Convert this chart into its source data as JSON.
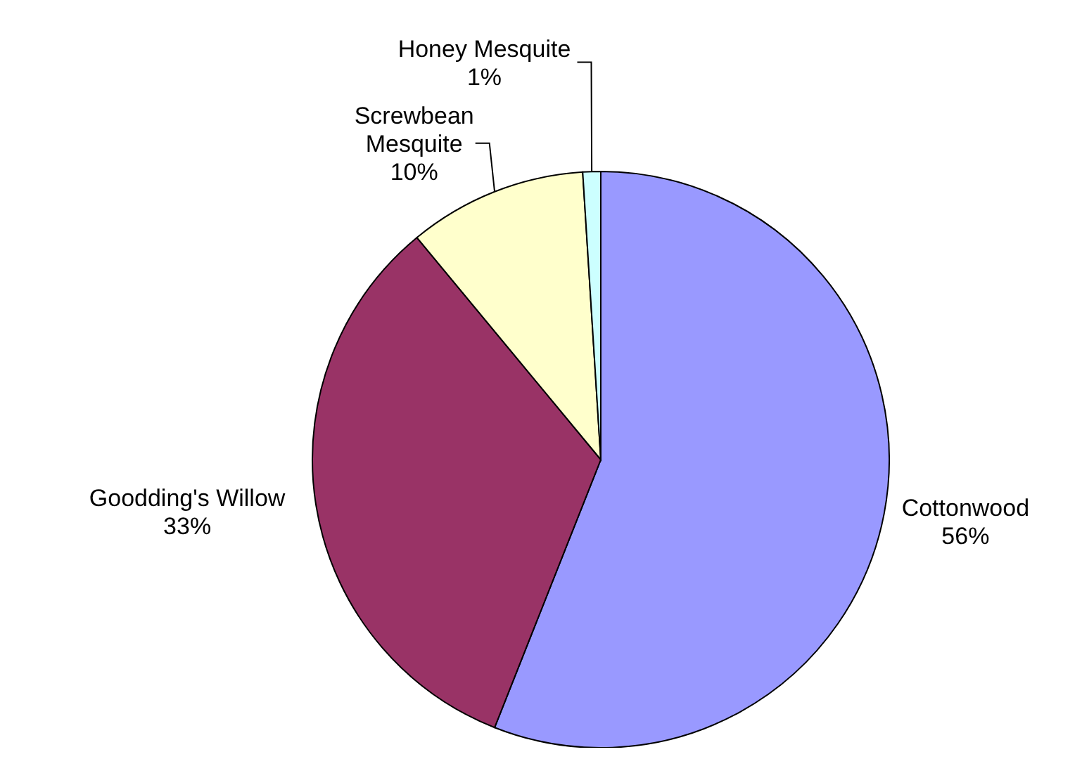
{
  "chart_data": {
    "type": "pie",
    "categories": [
      "Cottonwood",
      "Goodding's Willow",
      "Screwbean Mesquite",
      "Honey Mesquite"
    ],
    "values": [
      56,
      33,
      10,
      1
    ],
    "colors": [
      "#9999ff",
      "#993366",
      "#ffffcc",
      "#ccffff"
    ],
    "value_labels": [
      "56%",
      "33%",
      "10%",
      "1%"
    ],
    "legend": false
  }
}
